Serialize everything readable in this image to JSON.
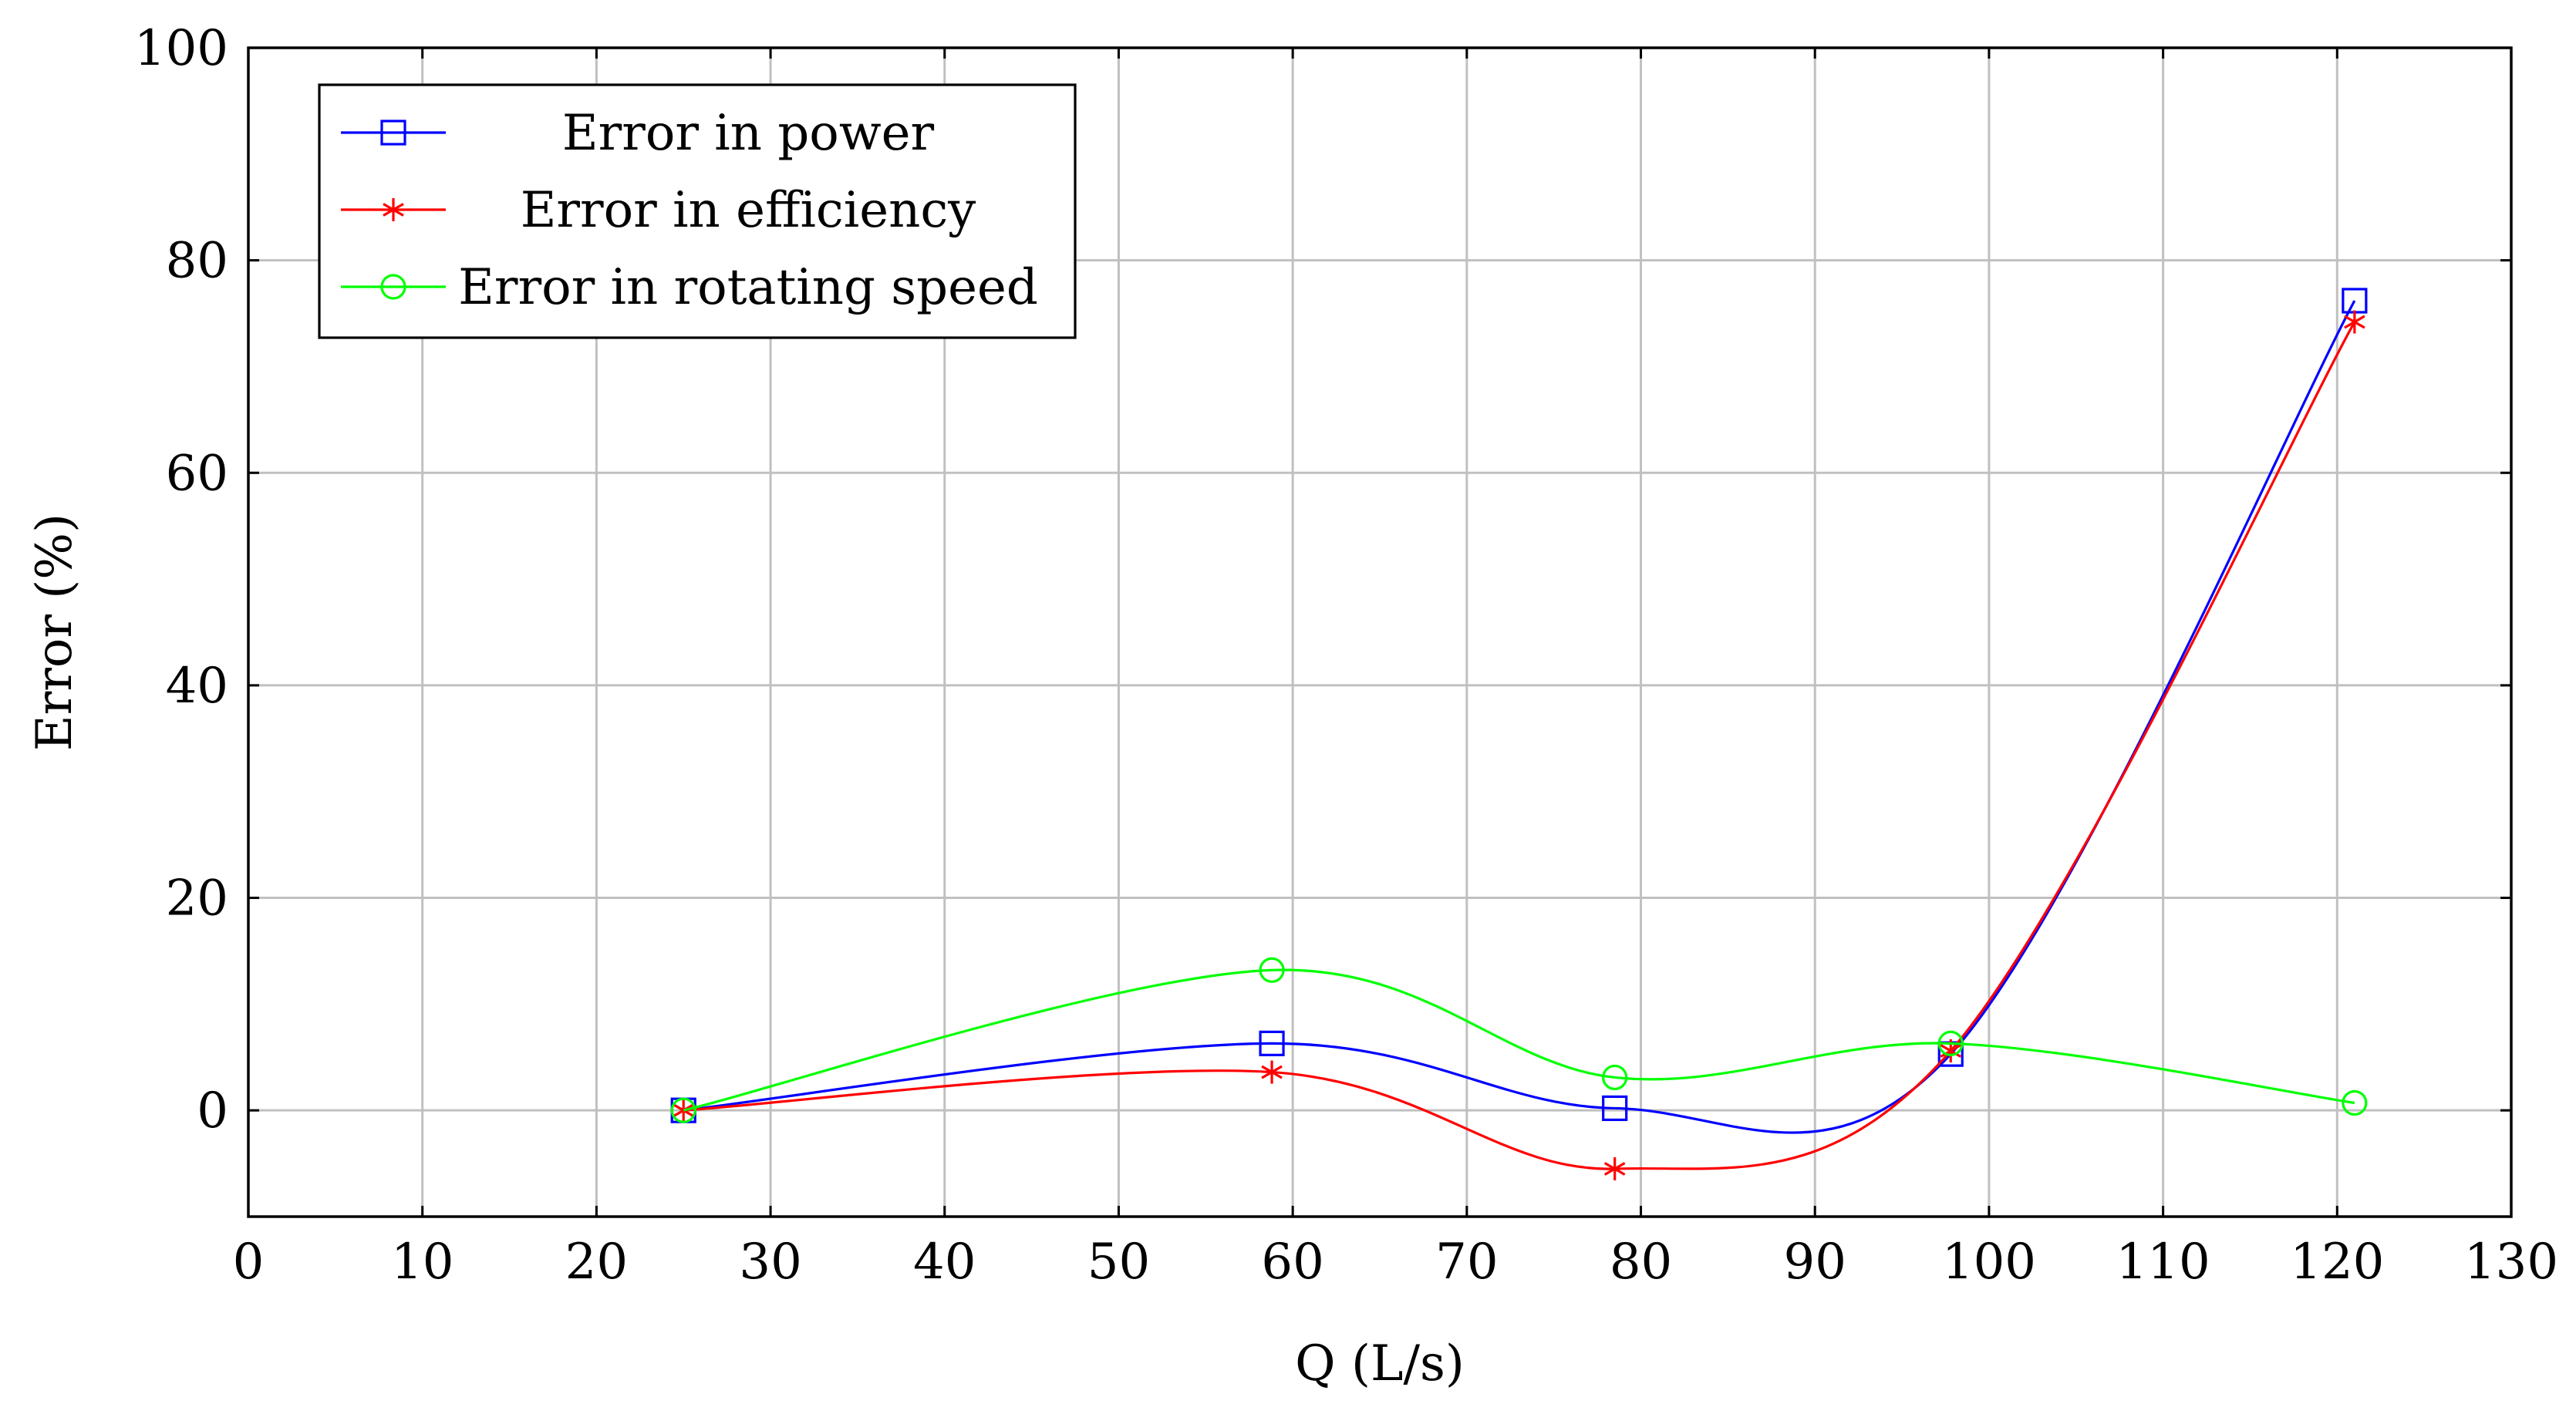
{
  "chart_data": {
    "type": "line",
    "title": "",
    "xlabel": "Q (L/s)",
    "ylabel": "Error (%)",
    "xlim": [
      0,
      130
    ],
    "ylim": [
      -10,
      100
    ],
    "xticks": [
      0,
      10,
      20,
      30,
      40,
      50,
      60,
      70,
      80,
      90,
      100,
      110,
      120,
      130
    ],
    "yticks": [
      0,
      20,
      40,
      60,
      80,
      100
    ],
    "grid": true,
    "legend_position": "top-left",
    "series": [
      {
        "name": "Error in power",
        "color": "#0000ff",
        "marker": "square",
        "smooth": true,
        "x": [
          25,
          58.8,
          78.5,
          97.8,
          121
        ],
        "y": [
          0,
          6.3,
          0.2,
          5.3,
          76.2
        ]
      },
      {
        "name": "Error in efficiency",
        "color": "#ff0000",
        "marker": "asterisk",
        "smooth": true,
        "x": [
          25,
          58.8,
          78.5,
          97.8,
          121
        ],
        "y": [
          0,
          3.6,
          -5.5,
          5.6,
          74.2
        ]
      },
      {
        "name": "Error in rotating speed",
        "color": "#00ff00",
        "marker": "circle",
        "smooth": true,
        "x": [
          25,
          58.8,
          78.5,
          97.8,
          121
        ],
        "y": [
          0,
          13.2,
          3.1,
          6.3,
          0.7
        ]
      }
    ]
  }
}
